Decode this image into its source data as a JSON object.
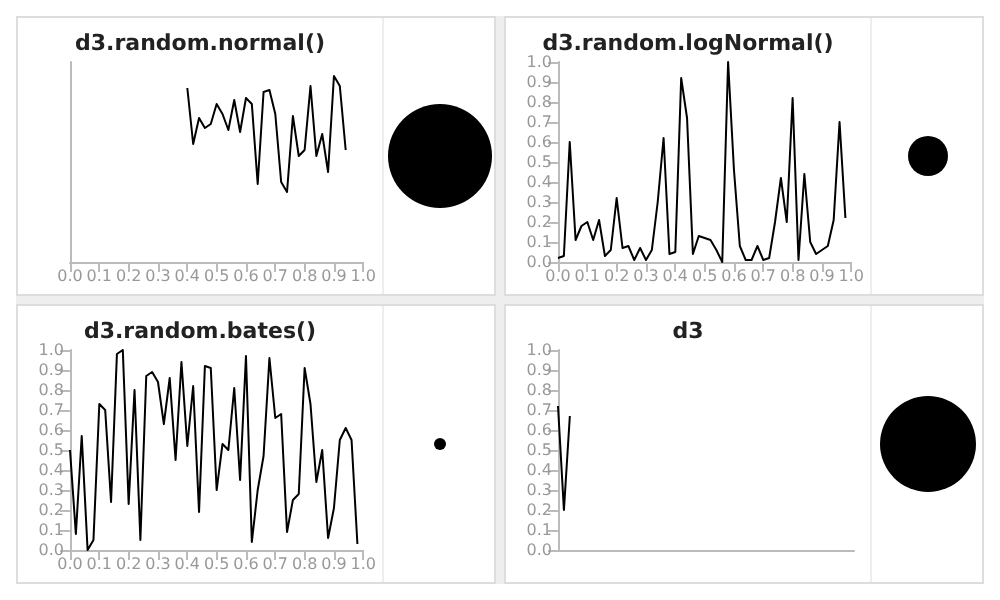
{
  "chart_data": [
    {
      "type": "line",
      "title": "d3.random.normal()",
      "tick_labels": "x",
      "xlim": [
        0,
        1
      ],
      "ylim": [
        0,
        1
      ],
      "xticks": [
        {
          "value": 0,
          "label": "0.0"
        },
        {
          "value": 0.1,
          "label": "0.1"
        },
        {
          "value": 0.2,
          "label": "0.2"
        },
        {
          "value": 0.3,
          "label": "0.3"
        },
        {
          "value": 0.4,
          "label": "0.4"
        },
        {
          "value": 0.5,
          "label": "0.5"
        },
        {
          "value": 0.6,
          "label": "0.6"
        },
        {
          "value": 0.7,
          "label": "0.7"
        },
        {
          "value": 0.8,
          "label": "0.8"
        },
        {
          "value": 0.9,
          "label": "0.9"
        },
        {
          "value": 1,
          "label": "1.0"
        }
      ],
      "series": [
        {
          "color": "#000000",
          "x": [
            0.4,
            0.42,
            0.44,
            0.46,
            0.48,
            0.5,
            0.52,
            0.54,
            0.56,
            0.58,
            0.6,
            0.62,
            0.64,
            0.66,
            0.68,
            0.7,
            0.72,
            0.74,
            0.76,
            0.78,
            0.8,
            0.82,
            0.84,
            0.86,
            0.88,
            0.9,
            0.92,
            0.94
          ],
          "values": [
            0.87,
            0.59,
            0.72,
            0.67,
            0.69,
            0.79,
            0.74,
            0.66,
            0.81,
            0.65,
            0.82,
            0.79,
            0.39,
            0.85,
            0.86,
            0.74,
            0.4,
            0.35,
            0.73,
            0.53,
            0.56,
            0.88,
            0.53,
            0.64,
            0.45,
            0.93,
            0.88,
            0.56
          ]
        }
      ]
    },
    {
      "type": "line",
      "title": "d3.random.logNormal()",
      "xlim": [
        0,
        1
      ],
      "ylim": [
        0,
        1
      ],
      "xticks": [
        {
          "value": 0,
          "label": "0.0"
        },
        {
          "value": 0.1,
          "label": "0.1"
        },
        {
          "value": 0.2,
          "label": "0.2"
        },
        {
          "value": 0.3,
          "label": "0.3"
        },
        {
          "value": 0.4,
          "label": "0.4"
        },
        {
          "value": 0.5,
          "label": "0.5"
        },
        {
          "value": 0.6,
          "label": "0.6"
        },
        {
          "value": 0.7,
          "label": "0.7"
        },
        {
          "value": 0.8,
          "label": "0.8"
        },
        {
          "value": 0.9,
          "label": "0.9"
        },
        {
          "value": 1,
          "label": "1.0"
        }
      ],
      "yticks": [
        {
          "value": 0,
          "label": "0.0"
        },
        {
          "value": 0.1,
          "label": "0.1"
        },
        {
          "value": 0.2,
          "label": "0.2"
        },
        {
          "value": 0.3,
          "label": "0.3"
        },
        {
          "value": 0.4,
          "label": "0.4"
        },
        {
          "value": 0.5,
          "label": "0.5"
        },
        {
          "value": 0.6,
          "label": "0.6"
        },
        {
          "value": 0.7,
          "label": "0.7"
        },
        {
          "value": 0.8,
          "label": "0.8"
        },
        {
          "value": 0.9,
          "label": "0.9"
        },
        {
          "value": 1,
          "label": "1.0"
        }
      ],
      "series": [
        {
          "color": "#000000",
          "x": [
            0,
            0.02,
            0.04,
            0.06,
            0.08,
            0.1,
            0.12,
            0.14,
            0.16,
            0.18,
            0.2,
            0.22,
            0.24,
            0.26,
            0.28,
            0.3,
            0.32,
            0.34,
            0.36,
            0.38,
            0.4,
            0.42,
            0.44,
            0.46,
            0.48,
            0.5,
            0.52,
            0.54,
            0.56,
            0.58,
            0.6,
            0.62,
            0.64,
            0.66,
            0.68,
            0.7,
            0.72,
            0.74,
            0.76,
            0.78,
            0.8,
            0.82,
            0.84,
            0.86,
            0.88,
            0.9,
            0.92,
            0.94,
            0.96,
            0.98
          ],
          "values": [
            0.02,
            0.03,
            0.6,
            0.11,
            0.18,
            0.2,
            0.11,
            0.21,
            0.03,
            0.06,
            0.32,
            0.07,
            0.08,
            0.01,
            0.07,
            0.01,
            0.06,
            0.3,
            0.62,
            0.04,
            0.05,
            0.92,
            0.72,
            0.04,
            0.13,
            0.12,
            0.11,
            0.06,
            0.0,
            1.0,
            0.46,
            0.08,
            0.01,
            0.01,
            0.08,
            0.01,
            0.02,
            0.2,
            0.42,
            0.2,
            0.82,
            0.01,
            0.44,
            0.1,
            0.04,
            0.06,
            0.08,
            0.21,
            0.7,
            0.22
          ]
        }
      ]
    },
    {
      "type": "line",
      "title": "d3.random.bates()",
      "xlim": [
        0,
        1
      ],
      "ylim": [
        0,
        1
      ],
      "xticks": [
        {
          "value": 0,
          "label": "0.0"
        },
        {
          "value": 0.1,
          "label": "0.1"
        },
        {
          "value": 0.2,
          "label": "0.2"
        },
        {
          "value": 0.3,
          "label": "0.3"
        },
        {
          "value": 0.4,
          "label": "0.4"
        },
        {
          "value": 0.5,
          "label": "0.5"
        },
        {
          "value": 0.6,
          "label": "0.6"
        },
        {
          "value": 0.7,
          "label": "0.7"
        },
        {
          "value": 0.8,
          "label": "0.8"
        },
        {
          "value": 0.9,
          "label": "0.9"
        },
        {
          "value": 1,
          "label": "1.0"
        }
      ],
      "yticks": [
        {
          "value": 0,
          "label": "0.0"
        },
        {
          "value": 0.1,
          "label": "0.1"
        },
        {
          "value": 0.2,
          "label": "0.2"
        },
        {
          "value": 0.3,
          "label": "0.3"
        },
        {
          "value": 0.4,
          "label": "0.4"
        },
        {
          "value": 0.5,
          "label": "0.5"
        },
        {
          "value": 0.6,
          "label": "0.6"
        },
        {
          "value": 0.7,
          "label": "0.7"
        },
        {
          "value": 0.8,
          "label": "0.8"
        },
        {
          "value": 0.9,
          "label": "0.9"
        },
        {
          "value": 1,
          "label": "1.0"
        }
      ],
      "series": [
        {
          "color": "#000000",
          "x": [
            0,
            0.02,
            0.04,
            0.06,
            0.08,
            0.1,
            0.12,
            0.14,
            0.16,
            0.18,
            0.2,
            0.22,
            0.24,
            0.26,
            0.28,
            0.3,
            0.32,
            0.34,
            0.36,
            0.38,
            0.4,
            0.42,
            0.44,
            0.46,
            0.48,
            0.5,
            0.52,
            0.54,
            0.56,
            0.58,
            0.6,
            0.62,
            0.64,
            0.66,
            0.68,
            0.7,
            0.72,
            0.74,
            0.76,
            0.78,
            0.8,
            0.82,
            0.84,
            0.86,
            0.88,
            0.9,
            0.92,
            0.94,
            0.96,
            0.98
          ],
          "values": [
            0.5,
            0.08,
            0.57,
            0.0,
            0.05,
            0.73,
            0.7,
            0.24,
            0.98,
            1.0,
            0.23,
            0.8,
            0.05,
            0.87,
            0.89,
            0.84,
            0.63,
            0.86,
            0.45,
            0.94,
            0.52,
            0.82,
            0.19,
            0.92,
            0.91,
            0.3,
            0.53,
            0.5,
            0.81,
            0.35,
            0.97,
            0.04,
            0.3,
            0.47,
            0.96,
            0.66,
            0.68,
            0.09,
            0.25,
            0.28,
            0.91,
            0.73,
            0.34,
            0.5,
            0.06,
            0.21,
            0.55,
            0.61,
            0.55,
            0.03
          ]
        }
      ]
    },
    {
      "type": "line",
      "title": "d3",
      "tick_labels": "y",
      "xlim": [
        0,
        1
      ],
      "ylim": [
        0,
        1
      ],
      "yticks": [
        {
          "value": 0,
          "label": "0.0"
        },
        {
          "value": 0.1,
          "label": "0.1"
        },
        {
          "value": 0.2,
          "label": "0.2"
        },
        {
          "value": 0.3,
          "label": "0.3"
        },
        {
          "value": 0.4,
          "label": "0.4"
        },
        {
          "value": 0.5,
          "label": "0.5"
        },
        {
          "value": 0.6,
          "label": "0.6"
        },
        {
          "value": 0.7,
          "label": "0.7"
        },
        {
          "value": 0.8,
          "label": "0.8"
        },
        {
          "value": 0.9,
          "label": "0.9"
        },
        {
          "value": 1,
          "label": "1.0"
        }
      ],
      "series": [
        {
          "color": "#000000",
          "x": [
            0,
            0.02,
            0.04
          ],
          "values": [
            0.72,
            0.2,
            0.67
          ]
        }
      ]
    }
  ]
}
